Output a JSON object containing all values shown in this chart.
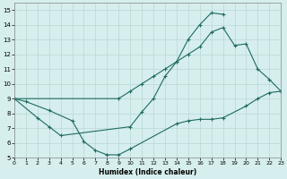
{
  "xlabel": "Humidex (Indice chaleur)",
  "xlim": [
    0,
    23
  ],
  "ylim": [
    5,
    15.5
  ],
  "yticks": [
    5,
    6,
    7,
    8,
    9,
    10,
    11,
    12,
    13,
    14,
    15
  ],
  "xticks": [
    0,
    1,
    2,
    3,
    4,
    5,
    6,
    7,
    8,
    9,
    10,
    11,
    12,
    13,
    14,
    15,
    16,
    17,
    18,
    19,
    20,
    21,
    22,
    23
  ],
  "line_color": "#1e6b5e",
  "bg_color": "#d6eeee",
  "grid_color": "#b8d8d4",
  "line1_x": [
    0,
    1,
    3,
    5,
    6,
    7,
    8,
    9,
    10,
    14,
    15,
    16,
    17,
    18,
    20,
    21,
    22,
    23
  ],
  "line1_y": [
    9,
    8.8,
    8.2,
    7.5,
    6.1,
    5.5,
    5.2,
    5.2,
    5.6,
    7.3,
    7.5,
    7.6,
    7.6,
    7.7,
    8.5,
    9.0,
    9.4,
    9.5
  ],
  "line2_x": [
    0,
    2,
    3,
    4,
    10,
    11,
    12,
    13,
    14,
    15,
    16,
    17,
    18
  ],
  "line2_y": [
    9,
    7.7,
    7.1,
    6.5,
    7.1,
    8.1,
    9.0,
    10.5,
    11.5,
    13.0,
    14.0,
    14.8,
    14.7
  ],
  "line3_x": [
    0,
    9,
    10,
    11,
    12,
    13,
    14,
    15,
    16,
    17,
    18,
    19,
    20,
    21,
    22,
    23
  ],
  "line3_y": [
    9,
    9.0,
    9.5,
    10.0,
    10.5,
    11.0,
    11.5,
    12.0,
    12.5,
    13.5,
    13.8,
    12.6,
    12.7,
    11.0,
    10.3,
    9.5
  ]
}
